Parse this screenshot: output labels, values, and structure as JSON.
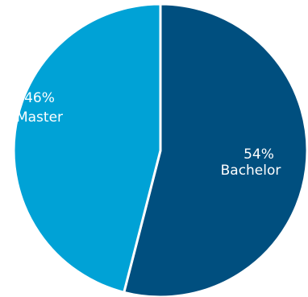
{
  "chart_data": {
    "type": "pie",
    "title": "",
    "slices": [
      {
        "label": "Bachelor",
        "value": 54,
        "percent_label": "54%",
        "color": "#004f7f"
      },
      {
        "label": "Master",
        "value": 46,
        "percent_label": "46%",
        "color": "#00a2d6"
      }
    ],
    "start": "12 o'clock",
    "direction": "clockwise",
    "separator_color": "#ffffff",
    "legend": "none"
  }
}
